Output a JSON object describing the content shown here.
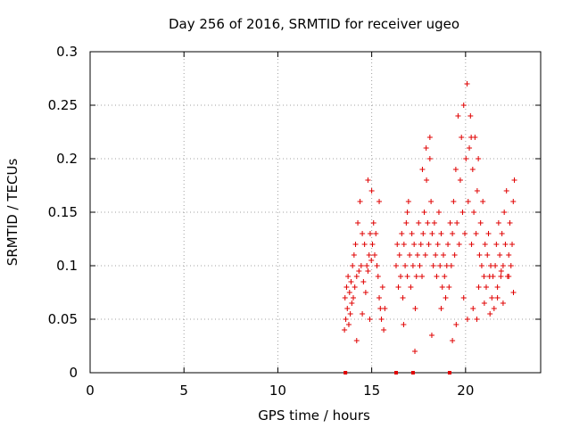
{
  "chart_data": {
    "type": "scatter",
    "title": "Day 256 of 2016, SRMTID for receiver ugeo",
    "xlabel": "GPS time / hours",
    "ylabel": "SRMTID / TECUs",
    "xlim": [
      0,
      24
    ],
    "ylim": [
      0,
      0.3
    ],
    "xticks": [
      0,
      5,
      10,
      15,
      20
    ],
    "yticks": [
      0,
      0.05,
      0.1,
      0.15,
      0.2,
      0.25,
      0.3
    ],
    "xtick_labels": [
      "0",
      "5",
      "10",
      "15",
      "20"
    ],
    "ytick_labels": [
      "0",
      "0.05",
      "0.1",
      "0.15",
      "0.2",
      "0.25",
      "0.3"
    ],
    "grid": true,
    "marker": "+",
    "color": "#e00000",
    "series": [
      {
        "name": "SRMTID",
        "x": [
          13.55,
          13.58,
          13.62,
          13.66,
          13.7,
          13.74,
          13.78,
          13.82,
          13.86,
          13.9,
          13.94,
          13.98,
          14.02,
          14.06,
          14.1,
          14.14,
          14.2,
          14.26,
          14.32,
          14.38,
          14.44,
          14.5,
          14.56,
          14.62,
          14.68,
          14.74,
          14.8,
          14.86,
          14.92,
          14.98,
          15.04,
          15.1,
          15.16,
          15.22,
          15.28,
          15.34,
          15.4,
          15.46,
          15.52,
          15.58,
          15.64,
          15.7,
          16.3,
          16.36,
          16.42,
          16.48,
          16.54,
          16.6,
          16.66,
          16.72,
          16.78,
          16.84,
          16.9,
          16.96,
          17.02,
          17.08,
          17.14,
          17.2,
          17.26,
          17.32,
          17.38,
          17.44,
          17.5,
          17.56,
          17.62,
          17.68,
          17.74,
          17.8,
          17.86,
          17.92,
          17.98,
          18.04,
          18.1,
          18.16,
          18.22,
          18.28,
          18.34,
          18.4,
          18.46,
          18.52,
          18.58,
          18.64,
          18.7,
          18.76,
          18.82,
          18.88,
          18.94,
          19.0,
          19.06,
          19.12,
          19.18,
          19.24,
          19.3,
          19.36,
          19.42,
          19.48,
          19.54,
          19.6,
          19.66,
          19.72,
          19.78,
          19.84,
          19.9,
          19.96,
          20.02,
          20.08,
          20.14,
          20.2,
          20.26,
          20.32,
          20.38,
          20.44,
          20.5,
          20.56,
          20.62,
          20.68,
          20.74,
          20.8,
          20.86,
          20.92,
          20.98,
          21.04,
          21.1,
          21.16,
          21.22,
          21.28,
          21.34,
          21.4,
          21.46,
          21.52,
          21.58,
          21.64,
          21.7,
          21.76,
          21.82,
          21.88,
          21.94,
          22.0,
          22.06,
          22.12,
          22.18,
          22.24,
          22.3,
          22.36,
          22.42,
          22.48,
          22.54,
          22.6,
          14.9,
          15.0,
          14.2,
          14.5,
          16.7,
          17.3,
          18.2,
          18.7,
          19.3,
          19.9,
          20.1,
          20.4,
          20.7,
          21.0,
          21.3,
          21.7,
          22.0,
          22.3,
          22.55,
          18.1,
          17.7,
          16.9,
          15.4,
          14.8,
          19.5,
          20.6,
          21.9,
          17.9,
          20.3
        ],
        "y": [
          0.04,
          0.07,
          0.05,
          0.08,
          0.06,
          0.09,
          0.045,
          0.075,
          0.055,
          0.085,
          0.065,
          0.1,
          0.07,
          0.11,
          0.08,
          0.12,
          0.09,
          0.14,
          0.095,
          0.16,
          0.1,
          0.13,
          0.085,
          0.12,
          0.075,
          0.1,
          0.095,
          0.11,
          0.13,
          0.105,
          0.12,
          0.14,
          0.11,
          0.13,
          0.1,
          0.09,
          0.07,
          0.06,
          0.05,
          0.08,
          0.04,
          0.06,
          0.1,
          0.12,
          0.08,
          0.11,
          0.09,
          0.13,
          0.07,
          0.12,
          0.1,
          0.14,
          0.09,
          0.16,
          0.11,
          0.08,
          0.13,
          0.1,
          0.12,
          0.06,
          0.09,
          0.11,
          0.14,
          0.1,
          0.12,
          0.09,
          0.13,
          0.15,
          0.11,
          0.18,
          0.14,
          0.12,
          0.22,
          0.16,
          0.13,
          0.1,
          0.14,
          0.11,
          0.09,
          0.12,
          0.15,
          0.1,
          0.13,
          0.08,
          0.11,
          0.09,
          0.07,
          0.1,
          0.12,
          0.08,
          0.14,
          0.1,
          0.13,
          0.16,
          0.11,
          0.19,
          0.14,
          0.24,
          0.12,
          0.18,
          0.22,
          0.15,
          0.25,
          0.13,
          0.2,
          0.27,
          0.16,
          0.21,
          0.24,
          0.12,
          0.19,
          0.15,
          0.22,
          0.13,
          0.17,
          0.2,
          0.11,
          0.14,
          0.1,
          0.16,
          0.09,
          0.12,
          0.08,
          0.11,
          0.13,
          0.09,
          0.1,
          0.07,
          0.09,
          0.06,
          0.1,
          0.12,
          0.08,
          0.14,
          0.11,
          0.09,
          0.13,
          0.1,
          0.15,
          0.12,
          0.17,
          0.09,
          0.11,
          0.14,
          0.1,
          0.12,
          0.16,
          0.18,
          0.05,
          0.17,
          0.03,
          0.055,
          0.045,
          0.02,
          0.035,
          0.06,
          0.03,
          0.07,
          0.05,
          0.06,
          0.08,
          0.065,
          0.055,
          0.07,
          0.065,
          0.09,
          0.075,
          0.2,
          0.19,
          0.15,
          0.16,
          0.18,
          0.045,
          0.05,
          0.095,
          0.21,
          0.22
        ]
      }
    ],
    "zero_markers_x": [
      13.6,
      16.3,
      17.2,
      19.15
    ]
  }
}
